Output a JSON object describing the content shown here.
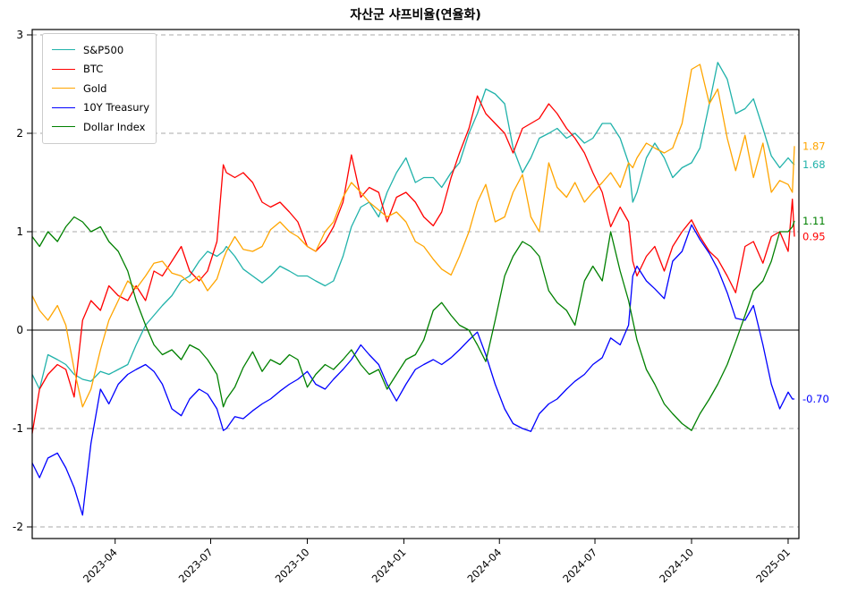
{
  "title": "자산군 샤프비율(연율화)",
  "chart_data": {
    "type": "line",
    "title": "자산군 샤프비율(연율화)",
    "xlabel": "",
    "ylabel": "",
    "ylim": [
      -2.12,
      3.05
    ],
    "yticks": [
      3,
      2,
      1,
      0,
      -1,
      -2
    ],
    "xticks": [
      "2023-04",
      "2023-07",
      "2023-10",
      "2024-01",
      "2024-04",
      "2024-07",
      "2024-10",
      "2025-01"
    ],
    "grid": "horizontal-dashed, solid line at 0",
    "legend_position": "upper-left",
    "x": [
      "2023-01-12",
      "2023-01-19",
      "2023-01-27",
      "2023-02-05",
      "2023-02-13",
      "2023-02-21",
      "2023-03-01",
      "2023-03-09",
      "2023-03-18",
      "2023-03-26",
      "2023-04-04",
      "2023-04-13",
      "2023-04-21",
      "2023-04-30",
      "2023-05-08",
      "2023-05-16",
      "2023-05-25",
      "2023-06-03",
      "2023-06-11",
      "2023-06-20",
      "2023-06-28",
      "2023-07-07",
      "2023-07-13",
      "2023-07-16",
      "2023-07-24",
      "2023-08-01",
      "2023-08-10",
      "2023-08-19",
      "2023-08-27",
      "2023-09-05",
      "2023-09-14",
      "2023-09-22",
      "2023-10-01",
      "2023-10-09",
      "2023-10-18",
      "2023-10-26",
      "2023-11-04",
      "2023-11-12",
      "2023-11-21",
      "2023-11-29",
      "2023-12-08",
      "2023-12-16",
      "2023-12-25",
      "2024-01-03",
      "2024-01-12",
      "2024-01-20",
      "2024-01-29",
      "2024-02-06",
      "2024-02-15",
      "2024-02-23",
      "2024-03-03",
      "2024-03-11",
      "2024-03-19",
      "2024-03-28",
      "2024-04-06",
      "2024-04-14",
      "2024-04-23",
      "2024-05-01",
      "2024-05-09",
      "2024-05-18",
      "2024-05-26",
      "2024-06-04",
      "2024-06-12",
      "2024-06-21",
      "2024-06-29",
      "2024-07-08",
      "2024-07-16",
      "2024-07-25",
      "2024-08-02",
      "2024-08-06",
      "2024-08-10",
      "2024-08-19",
      "2024-08-27",
      "2024-09-05",
      "2024-09-13",
      "2024-09-22",
      "2024-10-01",
      "2024-10-09",
      "2024-10-18",
      "2024-10-26",
      "2024-11-04",
      "2024-11-12",
      "2024-11-21",
      "2024-11-29",
      "2024-12-08",
      "2024-12-16",
      "2024-12-24",
      "2025-01-01",
      "2025-01-05",
      "2025-01-07"
    ],
    "series": [
      {
        "name": "S&P500",
        "color": "#20b2aa",
        "end_label": "1.68",
        "values": [
          -0.45,
          -0.6,
          -0.25,
          -0.3,
          -0.35,
          -0.45,
          -0.5,
          -0.52,
          -0.42,
          -0.45,
          -0.4,
          -0.35,
          -0.15,
          0.05,
          0.15,
          0.25,
          0.35,
          0.5,
          0.55,
          0.7,
          0.8,
          0.75,
          0.8,
          0.85,
          0.75,
          0.62,
          0.55,
          0.48,
          0.55,
          0.65,
          0.6,
          0.55,
          0.55,
          0.5,
          0.45,
          0.5,
          0.75,
          1.05,
          1.25,
          1.3,
          1.15,
          1.4,
          1.6,
          1.75,
          1.5,
          1.55,
          1.55,
          1.45,
          1.6,
          1.7,
          2.0,
          2.2,
          2.45,
          2.4,
          2.3,
          1.85,
          1.6,
          1.75,
          1.95,
          2.0,
          2.05,
          1.95,
          2.0,
          1.9,
          1.95,
          2.1,
          2.1,
          1.95,
          1.7,
          1.3,
          1.4,
          1.75,
          1.9,
          1.75,
          1.55,
          1.65,
          1.7,
          1.85,
          2.3,
          2.72,
          2.55,
          2.2,
          2.25,
          2.35,
          2.05,
          1.77,
          1.65,
          1.75,
          1.7,
          1.68
        ]
      },
      {
        "name": "BTC",
        "color": "#ff0000",
        "end_label": "0.95",
        "values": [
          -1.05,
          -0.6,
          -0.45,
          -0.35,
          -0.4,
          -0.68,
          0.1,
          0.3,
          0.2,
          0.45,
          0.35,
          0.3,
          0.45,
          0.3,
          0.6,
          0.55,
          0.7,
          0.85,
          0.6,
          0.5,
          0.6,
          0.9,
          1.68,
          1.6,
          1.55,
          1.6,
          1.5,
          1.3,
          1.25,
          1.3,
          1.2,
          1.1,
          0.85,
          0.8,
          0.9,
          1.05,
          1.3,
          1.78,
          1.35,
          1.45,
          1.4,
          1.1,
          1.35,
          1.4,
          1.3,
          1.15,
          1.06,
          1.2,
          1.55,
          1.8,
          2.05,
          2.38,
          2.2,
          2.1,
          2.0,
          1.8,
          2.05,
          2.1,
          2.15,
          2.3,
          2.2,
          2.05,
          1.95,
          1.8,
          1.6,
          1.4,
          1.05,
          1.25,
          1.1,
          0.7,
          0.55,
          0.75,
          0.85,
          0.6,
          0.85,
          1.0,
          1.12,
          0.95,
          0.8,
          0.72,
          0.55,
          0.38,
          0.85,
          0.9,
          0.68,
          0.95,
          1.0,
          0.8,
          1.33,
          0.95
        ]
      },
      {
        "name": "Gold",
        "color": "#ffa500",
        "end_label": "1.87",
        "values": [
          0.35,
          0.2,
          0.1,
          0.25,
          0.05,
          -0.4,
          -0.78,
          -0.6,
          -0.2,
          0.1,
          0.3,
          0.5,
          0.42,
          0.55,
          0.68,
          0.7,
          0.58,
          0.55,
          0.48,
          0.55,
          0.4,
          0.52,
          0.72,
          0.8,
          0.95,
          0.82,
          0.8,
          0.85,
          1.02,
          1.1,
          1.0,
          0.95,
          0.85,
          0.8,
          1.0,
          1.1,
          1.35,
          1.5,
          1.4,
          1.3,
          1.22,
          1.15,
          1.2,
          1.1,
          0.9,
          0.85,
          0.72,
          0.62,
          0.56,
          0.75,
          1.0,
          1.3,
          1.48,
          1.1,
          1.15,
          1.4,
          1.58,
          1.15,
          1.0,
          1.7,
          1.45,
          1.35,
          1.5,
          1.3,
          1.4,
          1.5,
          1.6,
          1.45,
          1.7,
          1.65,
          1.75,
          1.9,
          1.85,
          1.8,
          1.85,
          2.1,
          2.65,
          2.7,
          2.3,
          2.45,
          1.95,
          1.62,
          1.98,
          1.55,
          1.9,
          1.4,
          1.52,
          1.48,
          1.4,
          1.87
        ]
      },
      {
        "name": "10Y Treasury",
        "color": "#0000ff",
        "end_label": "-0.70",
        "values": [
          -1.35,
          -1.5,
          -1.3,
          -1.25,
          -1.4,
          -1.6,
          -1.88,
          -1.15,
          -0.6,
          -0.75,
          -0.55,
          -0.45,
          -0.4,
          -0.35,
          -0.42,
          -0.55,
          -0.8,
          -0.87,
          -0.7,
          -0.6,
          -0.65,
          -0.8,
          -1.02,
          -1.0,
          -0.88,
          -0.9,
          -0.82,
          -0.75,
          -0.7,
          -0.62,
          -0.55,
          -0.5,
          -0.42,
          -0.55,
          -0.6,
          -0.5,
          -0.4,
          -0.3,
          -0.15,
          -0.25,
          -0.35,
          -0.55,
          -0.72,
          -0.55,
          -0.4,
          -0.35,
          -0.3,
          -0.35,
          -0.28,
          -0.2,
          -0.1,
          -0.02,
          -0.25,
          -0.55,
          -0.8,
          -0.95,
          -1.0,
          -1.03,
          -0.85,
          -0.75,
          -0.7,
          -0.6,
          -0.52,
          -0.45,
          -0.35,
          -0.28,
          -0.08,
          -0.15,
          0.05,
          0.55,
          0.65,
          0.5,
          0.42,
          0.32,
          0.7,
          0.8,
          1.07,
          0.92,
          0.78,
          0.62,
          0.38,
          0.12,
          0.1,
          0.25,
          -0.15,
          -0.55,
          -0.8,
          -0.63,
          -0.7,
          -0.7
        ]
      },
      {
        "name": "Dollar Index",
        "color": "#008000",
        "end_label": "1.11",
        "values": [
          0.95,
          0.85,
          1.0,
          0.9,
          1.05,
          1.15,
          1.1,
          1.0,
          1.05,
          0.9,
          0.8,
          0.6,
          0.3,
          0.05,
          -0.15,
          -0.25,
          -0.2,
          -0.3,
          -0.15,
          -0.2,
          -0.3,
          -0.45,
          -0.78,
          -0.7,
          -0.58,
          -0.38,
          -0.22,
          -0.42,
          -0.3,
          -0.35,
          -0.25,
          -0.3,
          -0.58,
          -0.45,
          -0.35,
          -0.4,
          -0.3,
          -0.2,
          -0.35,
          -0.45,
          -0.4,
          -0.6,
          -0.45,
          -0.3,
          -0.25,
          -0.1,
          0.2,
          0.28,
          0.15,
          0.05,
          0.0,
          -0.15,
          -0.32,
          0.1,
          0.55,
          0.75,
          0.9,
          0.85,
          0.75,
          0.4,
          0.28,
          0.2,
          0.05,
          0.5,
          0.65,
          0.5,
          1.0,
          0.6,
          0.3,
          0.1,
          -0.1,
          -0.4,
          -0.55,
          -0.75,
          -0.85,
          -0.95,
          -1.02,
          -0.85,
          -0.7,
          -0.55,
          -0.35,
          -0.12,
          0.15,
          0.4,
          0.5,
          0.7,
          1.0,
          1.0,
          1.05,
          1.11
        ]
      }
    ]
  }
}
